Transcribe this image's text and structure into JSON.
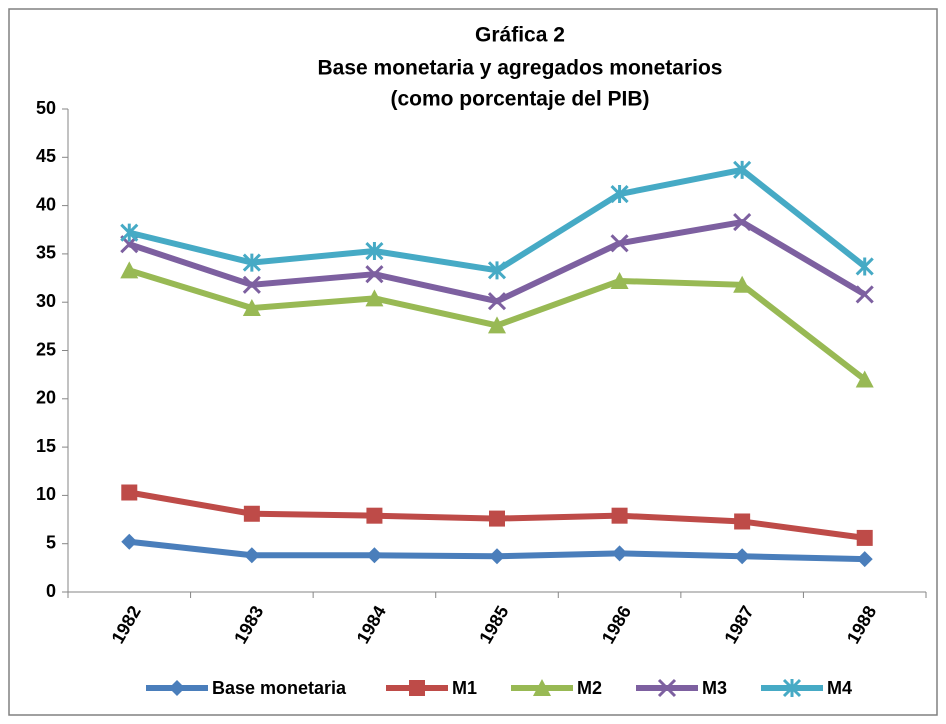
{
  "chart_data": {
    "type": "line",
    "title": "Gráfica 2",
    "subtitle": [
      "Base monetaria y agregados monetarios",
      "(como porcentaje del PIB)"
    ],
    "categories": [
      "1982",
      "1983",
      "1984",
      "1985",
      "1986",
      "1987",
      "1988"
    ],
    "series": [
      {
        "name": "Base monetaria",
        "color": "#4a7ebb",
        "marker": "diamond",
        "values": [
          5.2,
          3.8,
          3.8,
          3.7,
          4.0,
          3.7,
          3.4
        ]
      },
      {
        "name": "M1",
        "color": "#be4b48",
        "marker": "square",
        "values": [
          10.3,
          8.1,
          7.9,
          7.6,
          7.9,
          7.3,
          5.6
        ]
      },
      {
        "name": "M2",
        "color": "#98b954",
        "marker": "triangle",
        "values": [
          33.3,
          29.4,
          30.4,
          27.6,
          32.2,
          31.8,
          22.0
        ]
      },
      {
        "name": "M3",
        "color": "#7d60a0",
        "marker": "x",
        "values": [
          36.0,
          31.8,
          32.9,
          30.1,
          36.1,
          38.3,
          30.8
        ]
      },
      {
        "name": "M4",
        "color": "#46aac5",
        "marker": "asterisk",
        "values": [
          37.2,
          34.1,
          35.3,
          33.3,
          41.2,
          43.7,
          33.7
        ]
      }
    ],
    "ylim": [
      0,
      50
    ],
    "yticks": [
      0,
      5,
      10,
      15,
      20,
      25,
      30,
      35,
      40,
      45,
      50
    ],
    "grid": false,
    "legend": "bottom"
  }
}
